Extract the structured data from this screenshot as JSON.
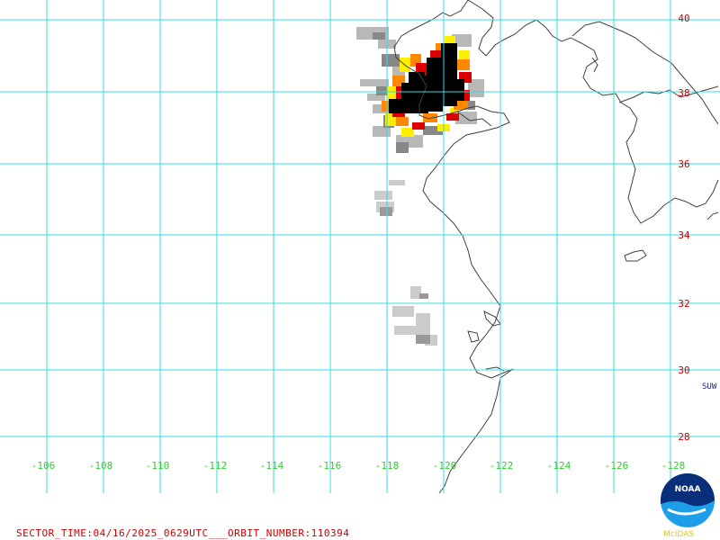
{
  "map": {
    "colors": {
      "grid": "#33dddd",
      "coast": "#404040",
      "lat_label": "#cc0000",
      "lon_label": "#33cc33"
    },
    "latitudes": [
      {
        "value": 40,
        "label": "40"
      },
      {
        "value": 38,
        "label": "38"
      },
      {
        "value": 36,
        "label": "36"
      },
      {
        "value": 34,
        "label": "34"
      },
      {
        "value": 32,
        "label": "32"
      },
      {
        "value": 30,
        "label": "30"
      },
      {
        "value": 28,
        "label": "28"
      }
    ],
    "longitudes": [
      {
        "value": -106,
        "label": "-106"
      },
      {
        "value": -108,
        "label": "-108"
      },
      {
        "value": -110,
        "label": "-110"
      },
      {
        "value": -112,
        "label": "-112"
      },
      {
        "value": -114,
        "label": "-114"
      },
      {
        "value": -116,
        "label": "-116"
      },
      {
        "value": -118,
        "label": "-118"
      },
      {
        "value": -120,
        "label": "-120"
      },
      {
        "value": -122,
        "label": "-122"
      },
      {
        "value": -124,
        "label": "-124"
      },
      {
        "value": -126,
        "label": "-126"
      },
      {
        "value": -128,
        "label": "-128"
      }
    ],
    "side_code": "SUW"
  },
  "footer": {
    "sector_time": "SECTOR_TIME:04/16/2025_0629UTC___ORBIT_NUMBER:110394"
  },
  "logo": {
    "text": "NOAA",
    "caption": "McIDAS"
  }
}
